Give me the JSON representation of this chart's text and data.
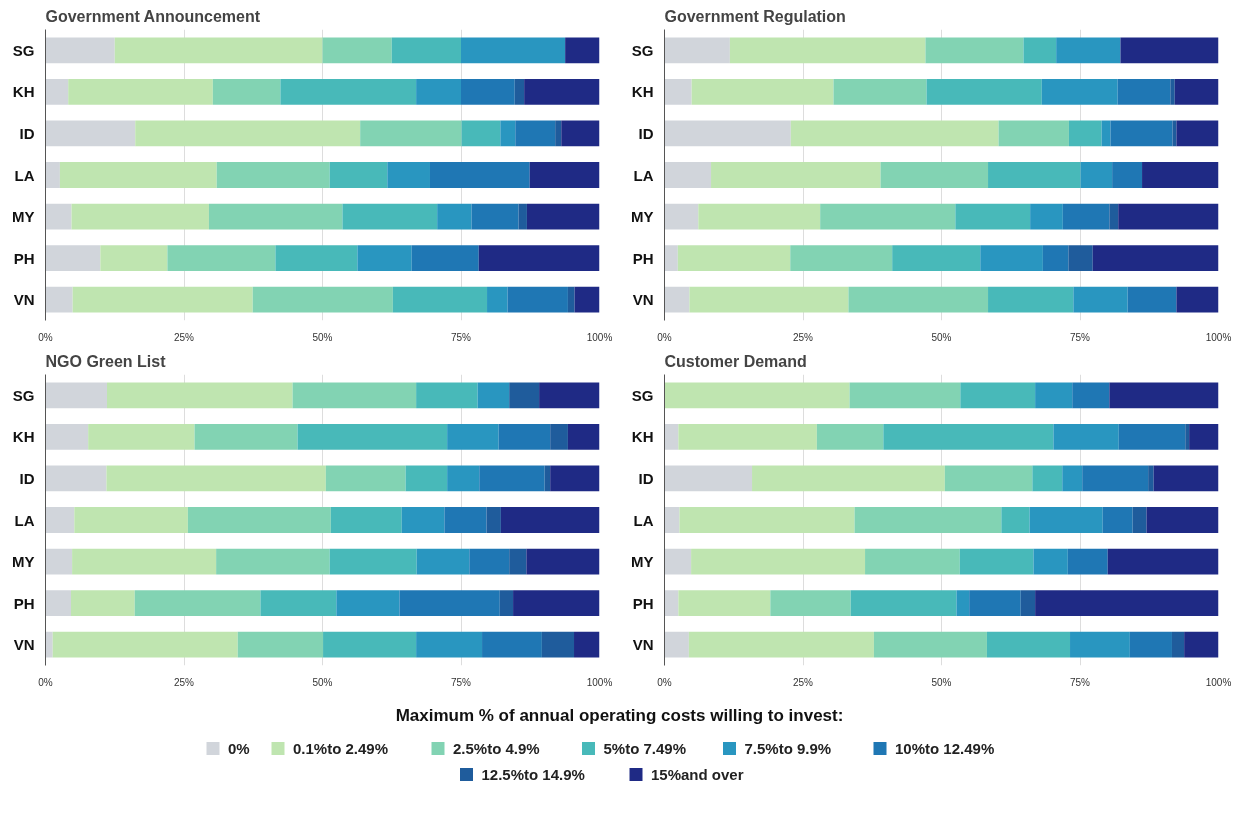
{
  "chart_data": [
    {
      "type": "bar",
      "orientation": "horizontal",
      "stacked": true,
      "title": "Government Announcement",
      "categories": [
        "SG",
        "KH",
        "ID",
        "LA",
        "MY",
        "PH",
        "VN"
      ],
      "xlim": [
        0,
        100
      ],
      "xticks": [
        {
          "value": 0,
          "label": "0%"
        },
        {
          "value": 25,
          "label": "25%"
        },
        {
          "value": 50,
          "label": "50%"
        },
        {
          "value": 75,
          "label": "75%"
        },
        {
          "value": 100,
          "label": "100%"
        }
      ],
      "grid": "x",
      "legend": "bottom",
      "legend_title": "Maximum % of annual operating costs willing to invest:",
      "series": [
        {
          "name": "0%",
          "color": "#d1d5db",
          "values": [
            12.5,
            4.1,
            16.2,
            2.6,
            4.7,
            9.9,
            4.9
          ]
        },
        {
          "name": "0.1%to 2.49%",
          "color": "#bfe5b0",
          "values": [
            37.5,
            26.1,
            40.6,
            28.3,
            24.8,
            12.1,
            32.5
          ]
        },
        {
          "name": "2.5%to 4.9%",
          "color": "#82d3b3",
          "values": [
            12.5,
            12.2,
            18.3,
            20.4,
            24.1,
            19.5,
            25.3
          ]
        },
        {
          "name": "5%to 7.49%",
          "color": "#48b9b9",
          "values": [
            12.5,
            24.5,
            7.0,
            10.4,
            17.1,
            14.8,
            17.0
          ]
        },
        {
          "name": "7.5%to 9.9%",
          "color": "#2996c0",
          "values": [
            18.8,
            8.1,
            2.7,
            7.7,
            6.2,
            9.8,
            3.7
          ]
        },
        {
          "name": "10%to 12.49%",
          "color": "#1f77b4",
          "values": [
            0,
            9.7,
            7.2,
            18.0,
            8.5,
            12.1,
            10.9
          ]
        },
        {
          "name": "12.5%to 14.9%",
          "color": "#1f5c9c",
          "values": [
            0,
            1.7,
            1.1,
            0,
            1.5,
            0,
            1.2
          ]
        },
        {
          "name": "15%and over",
          "color": "#1f2a85",
          "values": [
            6.2,
            13.6,
            6.9,
            12.6,
            13.1,
            21.8,
            4.5
          ]
        }
      ]
    },
    {
      "type": "bar",
      "orientation": "horizontal",
      "stacked": true,
      "title": "Government Regulation",
      "categories": [
        "SG",
        "KH",
        "ID",
        "LA",
        "MY",
        "PH",
        "VN"
      ],
      "xlim": [
        0,
        100
      ],
      "xticks": [
        {
          "value": 0,
          "label": "0%"
        },
        {
          "value": 25,
          "label": "25%"
        },
        {
          "value": 50,
          "label": "50%"
        },
        {
          "value": 75,
          "label": "75%"
        },
        {
          "value": 100,
          "label": "100%"
        }
      ],
      "grid": "x",
      "series": [
        {
          "color": "#d1d5db",
          "values": [
            11.8,
            4.9,
            22.8,
            8.4,
            6.1,
            2.4,
            4.5
          ]
        },
        {
          "color": "#bfe5b0",
          "values": [
            35.3,
            25.6,
            37.5,
            30.6,
            22.0,
            20.3,
            28.7
          ]
        },
        {
          "color": "#82d3b3",
          "values": [
            17.7,
            16.8,
            12.7,
            19.4,
            24.4,
            18.4,
            25.2
          ]
        },
        {
          "color": "#48b9b9",
          "values": [
            5.9,
            20.8,
            5.9,
            16.7,
            13.5,
            15.9,
            15.4
          ]
        },
        {
          "color": "#2996c0",
          "values": [
            11.6,
            13.7,
            1.6,
            5.7,
            5.9,
            11.3,
            9.8
          ]
        },
        {
          "color": "#1f77b4",
          "values": [
            0,
            9.5,
            11.2,
            5.4,
            8.4,
            4.6,
            8.8
          ]
        },
        {
          "color": "#1f5c9c",
          "values": [
            0,
            0.8,
            0.7,
            0,
            1.6,
            4.4,
            0
          ]
        },
        {
          "color": "#1f2a85",
          "values": [
            17.7,
            7.9,
            7.6,
            13.8,
            18.1,
            22.7,
            7.6
          ]
        }
      ]
    },
    {
      "type": "bar",
      "orientation": "horizontal",
      "stacked": true,
      "title": "NGO Green List",
      "categories": [
        "SG",
        "KH",
        "ID",
        "LA",
        "MY",
        "PH",
        "VN"
      ],
      "xlim": [
        0,
        100
      ],
      "xticks": [
        {
          "value": 0,
          "label": "0%"
        },
        {
          "value": 25,
          "label": "25%"
        },
        {
          "value": 50,
          "label": "50%"
        },
        {
          "value": 75,
          "label": "75%"
        },
        {
          "value": 100,
          "label": "100%"
        }
      ],
      "grid": "x",
      "series": [
        {
          "color": "#d1d5db",
          "values": [
            11.1,
            7.7,
            11.0,
            5.2,
            4.8,
            4.6,
            1.3
          ]
        },
        {
          "color": "#bfe5b0",
          "values": [
            33.5,
            19.2,
            39.6,
            20.5,
            26.0,
            11.5,
            33.4
          ]
        },
        {
          "color": "#82d3b3",
          "values": [
            22.3,
            18.6,
            14.4,
            25.8,
            20.5,
            22.7,
            15.4
          ]
        },
        {
          "color": "#48b9b9",
          "values": [
            11.1,
            27.0,
            7.5,
            12.8,
            15.7,
            13.7,
            16.8
          ]
        },
        {
          "color": "#2996c0",
          "values": [
            5.7,
            9.3,
            5.8,
            7.7,
            9.5,
            11.4,
            11.9
          ]
        },
        {
          "color": "#1f77b4",
          "values": [
            0,
            9.3,
            11.8,
            7.6,
            7.2,
            18.1,
            10.8
          ]
        },
        {
          "color": "#1f5c9c",
          "values": [
            5.4,
            3.2,
            1.0,
            2.6,
            3.1,
            2.4,
            5.8
          ]
        },
        {
          "color": "#1f2a85",
          "values": [
            10.9,
            5.7,
            8.9,
            17.8,
            13.2,
            15.6,
            4.6
          ]
        }
      ]
    },
    {
      "type": "bar",
      "orientation": "horizontal",
      "stacked": true,
      "title": "Customer Demand",
      "categories": [
        "SG",
        "KH",
        "ID",
        "LA",
        "MY",
        "PH",
        "VN"
      ],
      "xlim": [
        0,
        100
      ],
      "xticks": [
        {
          "value": 0,
          "label": "0%"
        },
        {
          "value": 25,
          "label": "25%"
        },
        {
          "value": 50,
          "label": "50%"
        },
        {
          "value": 75,
          "label": "75%"
        },
        {
          "value": 100,
          "label": "100%"
        }
      ],
      "grid": "x",
      "series": [
        {
          "color": "#d1d5db",
          "values": [
            0,
            2.5,
            15.8,
            2.7,
            4.8,
            2.5,
            4.4
          ]
        },
        {
          "color": "#bfe5b0",
          "values": [
            33.4,
            25.0,
            34.8,
            31.6,
            31.4,
            16.6,
            33.4
          ]
        },
        {
          "color": "#82d3b3",
          "values": [
            20.0,
            12.0,
            15.8,
            26.5,
            17.1,
            14.5,
            20.4
          ]
        },
        {
          "color": "#48b9b9",
          "values": [
            13.5,
            30.7,
            5.4,
            5.1,
            13.3,
            19.1,
            15.0
          ]
        },
        {
          "color": "#2996c0",
          "values": [
            6.7,
            11.8,
            3.6,
            13.2,
            6.2,
            2.3,
            10.8
          ]
        },
        {
          "color": "#1f77b4",
          "values": [
            6.7,
            12.0,
            11.9,
            5.4,
            7.2,
            9.3,
            7.6
          ]
        },
        {
          "color": "#1f5c9c",
          "values": [
            0,
            0.7,
            1.0,
            2.5,
            0,
            2.6,
            2.2
          ]
        },
        {
          "color": "#1f2a85",
          "values": [
            19.7,
            5.3,
            11.7,
            13.0,
            20.0,
            33.1,
            6.2
          ]
        }
      ]
    }
  ]
}
